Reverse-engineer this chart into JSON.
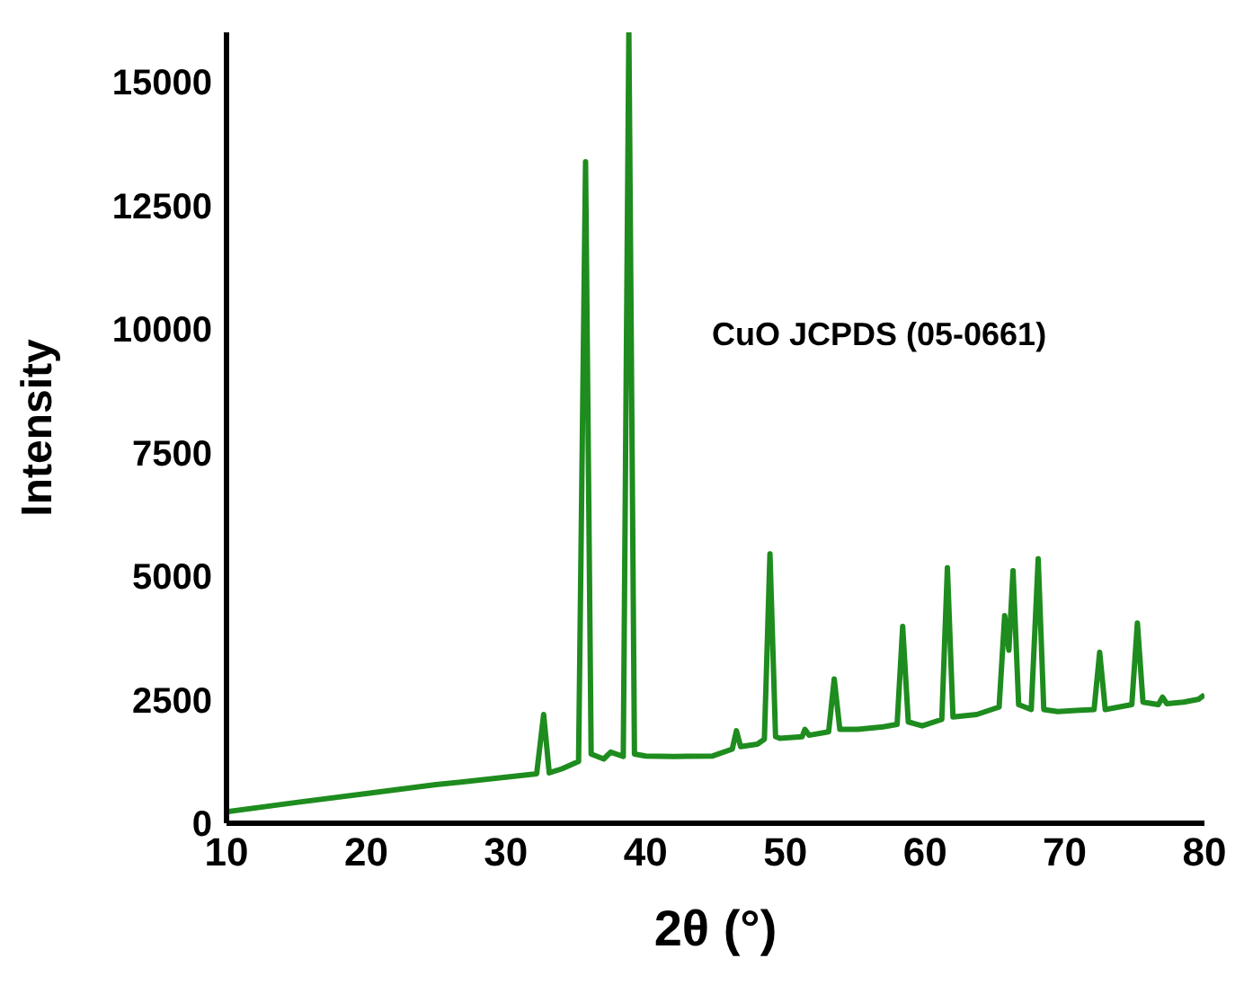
{
  "chart_data": {
    "type": "line",
    "xlabel": "2θ (°)",
    "ylabel": "Intensity",
    "annotations": [
      "CuO JCPDS (05-0661)"
    ],
    "xlim": [
      10,
      80
    ],
    "xticks": [
      10,
      20,
      30,
      40,
      50,
      60,
      70,
      80
    ],
    "ylim": [
      0,
      16000
    ],
    "yticks": [
      0,
      2500,
      5000,
      7500,
      10000,
      12500,
      15000
    ],
    "grid": false,
    "legend": false,
    "marker": "none",
    "line_style": "solid",
    "series": [
      {
        "color": "#1e8c1e",
        "x": [
          10,
          15,
          20,
          25,
          30,
          32.2,
          32.7,
          33.1,
          34,
          35.2,
          35.7,
          36.1,
          37,
          37.5,
          38.4,
          38.8,
          39.2,
          40,
          42,
          44.8,
          46.2,
          46.5,
          46.8,
          48,
          48.5,
          48.9,
          49.3,
          49.6,
          51.2,
          51.4,
          51.7,
          53.1,
          53.5,
          53.9,
          55.2,
          57,
          58,
          58.4,
          58.8,
          59.8,
          61.2,
          61.6,
          62,
          63.7,
          65.3,
          65.7,
          66,
          66.3,
          66.7,
          67.6,
          68.1,
          68.5,
          69.5,
          70.8,
          72.1,
          72.5,
          72.9,
          74.8,
          75.2,
          75.6,
          76.7,
          77,
          77.3,
          78.5,
          79.6,
          80
        ],
        "values": [
          230,
          420,
          600,
          780,
          930,
          1000,
          2200,
          1020,
          1100,
          1250,
          13380,
          1400,
          1300,
          1440,
          1350,
          16000,
          1400,
          1360,
          1350,
          1360,
          1500,
          1870,
          1550,
          1600,
          1700,
          5450,
          1750,
          1720,
          1750,
          1900,
          1780,
          1850,
          2920,
          1900,
          1900,
          1950,
          2000,
          3980,
          2050,
          1970,
          2100,
          5170,
          2150,
          2200,
          2350,
          4200,
          3500,
          5110,
          2400,
          2300,
          5350,
          2300,
          2260,
          2280,
          2300,
          3460,
          2300,
          2400,
          4050,
          2450,
          2400,
          2550,
          2420,
          2450,
          2510,
          2600
        ]
      }
    ]
  }
}
